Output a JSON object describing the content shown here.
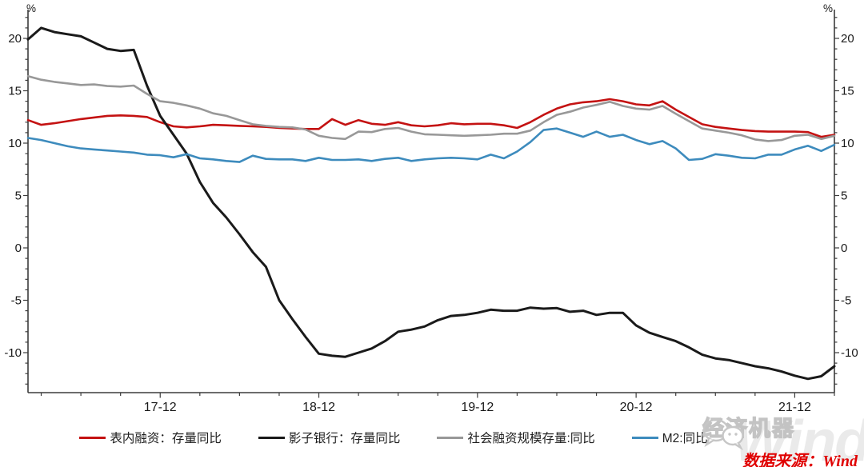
{
  "chart_data": {
    "type": "line",
    "title": "",
    "ylabel": "%",
    "y_unit_left": "%",
    "y_unit_right": "%",
    "ylim": [
      -13.8,
      22.7
    ],
    "y_major_ticks": [
      20,
      15,
      10,
      5,
      0,
      -5,
      -10
    ],
    "y_minor_step": 1,
    "grid": false,
    "legend_position": "bottom",
    "x_interval": "monthly",
    "x_start": "2017-02",
    "x_end": "2022-03",
    "x_year_ticks": [
      {
        "index": 10,
        "label": "17-12"
      },
      {
        "index": 22,
        "label": "18-12"
      },
      {
        "index": 34,
        "label": "19-12"
      },
      {
        "index": 46,
        "label": "20-12"
      },
      {
        "index": 58,
        "label": "21-12"
      }
    ],
    "x_minor_tick_start": 1,
    "x_minor_tick_every": 3,
    "series": [
      {
        "name": "表内融资：存量同比",
        "color": "#c41212",
        "values": [
          12.2,
          11.75,
          11.9,
          12.1,
          12.3,
          12.45,
          12.6,
          12.65,
          12.6,
          12.5,
          12.0,
          11.6,
          11.5,
          11.6,
          11.75,
          11.7,
          11.65,
          11.6,
          11.55,
          11.45,
          11.4,
          11.35,
          11.35,
          12.3,
          11.75,
          12.2,
          11.85,
          11.75,
          12.0,
          11.7,
          11.6,
          11.7,
          11.9,
          11.8,
          11.85,
          11.85,
          11.7,
          11.45,
          12.0,
          12.7,
          13.3,
          13.7,
          13.9,
          14.0,
          14.2,
          14.0,
          13.7,
          13.6,
          14.0,
          13.2,
          12.5,
          11.8,
          11.55,
          11.4,
          11.25,
          11.15,
          11.1,
          11.1,
          11.1,
          11.05,
          10.6,
          10.8
        ]
      },
      {
        "name": "影子银行：存量同比",
        "color": "#1a1a1a",
        "values": [
          19.9,
          21.0,
          20.6,
          20.4,
          20.2,
          19.6,
          19.0,
          18.8,
          18.9,
          15.5,
          12.6,
          10.8,
          9.0,
          6.3,
          4.3,
          2.9,
          1.3,
          -0.4,
          -1.8,
          -5.0,
          -6.8,
          -8.5,
          -10.1,
          -10.3,
          -10.4,
          -10.0,
          -9.6,
          -8.9,
          -8.0,
          -7.8,
          -7.5,
          -6.9,
          -6.5,
          -6.4,
          -6.2,
          -5.9,
          -6.0,
          -6.0,
          -5.7,
          -5.8,
          -5.75,
          -6.1,
          -6.0,
          -6.4,
          -6.2,
          -6.2,
          -7.4,
          -8.1,
          -8.5,
          -8.9,
          -9.5,
          -10.2,
          -10.55,
          -10.7,
          -11.0,
          -11.3,
          -11.5,
          -11.8,
          -12.2,
          -12.5,
          -12.25,
          -11.3
        ]
      },
      {
        "name": "社会融资规模存量:同比",
        "color": "#989898",
        "values": [
          16.4,
          16.05,
          15.85,
          15.7,
          15.55,
          15.6,
          15.45,
          15.4,
          15.5,
          14.7,
          14.0,
          13.85,
          13.6,
          13.3,
          12.85,
          12.6,
          12.2,
          11.8,
          11.65,
          11.55,
          11.5,
          11.3,
          10.7,
          10.5,
          10.4,
          11.1,
          11.05,
          11.35,
          11.45,
          11.1,
          10.85,
          10.8,
          10.75,
          10.7,
          10.75,
          10.8,
          10.9,
          10.9,
          11.2,
          12.0,
          12.7,
          13.0,
          13.4,
          13.65,
          13.95,
          13.55,
          13.3,
          13.2,
          13.55,
          12.8,
          12.1,
          11.4,
          11.2,
          11.0,
          10.75,
          10.35,
          10.2,
          10.3,
          10.7,
          10.8,
          10.4,
          10.7
        ]
      },
      {
        "name": "M2:同比",
        "color": "#3d8bbd",
        "values": [
          10.5,
          10.3,
          10.0,
          9.7,
          9.5,
          9.4,
          9.3,
          9.2,
          9.1,
          8.9,
          8.85,
          8.65,
          8.95,
          8.55,
          8.45,
          8.3,
          8.2,
          8.8,
          8.5,
          8.45,
          8.45,
          8.3,
          8.6,
          8.4,
          8.4,
          8.45,
          8.3,
          8.5,
          8.6,
          8.3,
          8.45,
          8.55,
          8.6,
          8.55,
          8.45,
          8.9,
          8.55,
          9.2,
          10.1,
          11.25,
          11.4,
          11.0,
          10.6,
          11.1,
          10.6,
          10.8,
          10.3,
          9.9,
          10.2,
          9.5,
          8.4,
          8.5,
          8.95,
          8.8,
          8.6,
          8.55,
          8.9,
          8.9,
          9.4,
          9.75,
          9.25,
          9.85
        ]
      }
    ]
  },
  "watermark": {
    "brand": "经济机器",
    "ghost_text": "Wind",
    "icon": "wechat-icon"
  },
  "source_note": "数据来源：Wind",
  "colors": {
    "axis": "#3c3c3c",
    "tick_label": "#1a1a1a",
    "source_note": "#e00000",
    "watermark_gray": "#c9c9c9"
  }
}
